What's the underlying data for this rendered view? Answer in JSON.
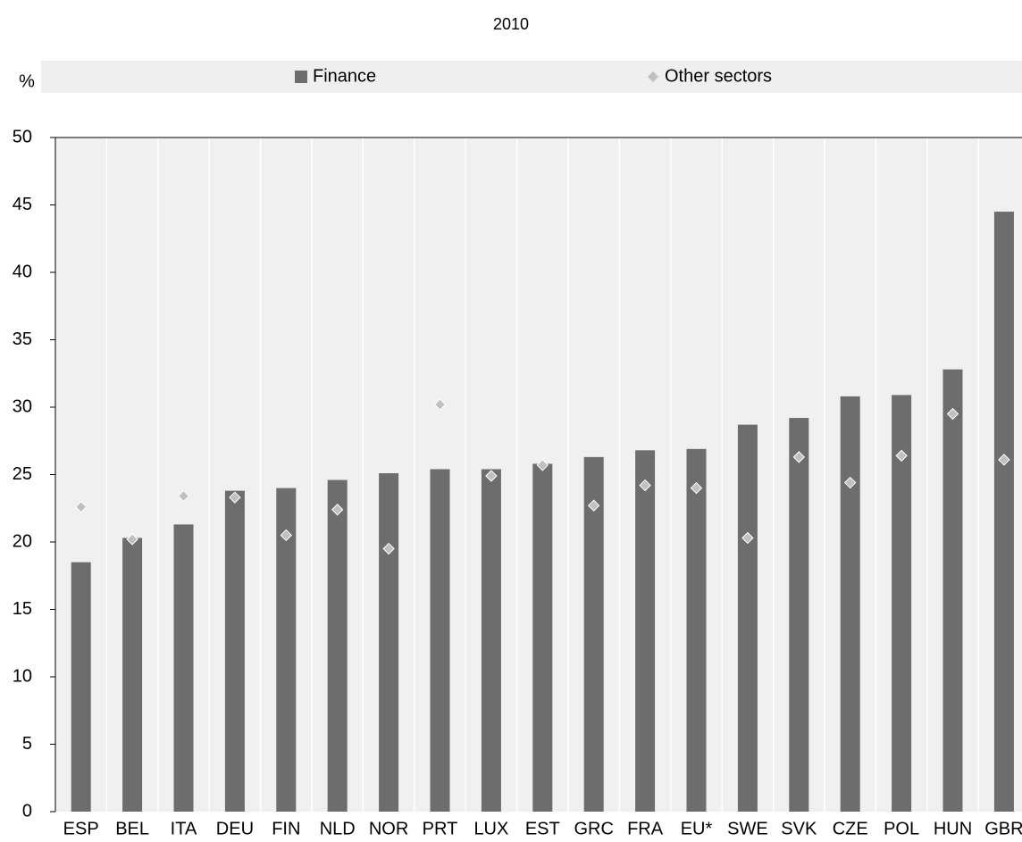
{
  "chart_data": {
    "type": "bar",
    "title": "2010",
    "y_label": "%",
    "categories": [
      "ESP",
      "BEL",
      "ITA",
      "DEU",
      "FIN",
      "NLD",
      "NOR",
      "PRT",
      "LUX",
      "EST",
      "GRC",
      "FRA",
      "EU*",
      "SWE",
      "SVK",
      "CZE",
      "POL",
      "HUN",
      "GBR"
    ],
    "series": [
      {
        "name": "Finance",
        "color": "#6d6d6d",
        "mark": "bar",
        "values": [
          18.5,
          20.3,
          21.3,
          23.8,
          24.0,
          24.6,
          25.1,
          25.4,
          25.4,
          25.8,
          26.3,
          26.8,
          26.9,
          28.7,
          29.2,
          30.8,
          30.9,
          32.8,
          44.5
        ]
      },
      {
        "name": "Other sectors",
        "color": "#c0c0c0",
        "mark": "diamond",
        "values": [
          22.6,
          20.2,
          23.4,
          23.3,
          20.5,
          22.4,
          19.5,
          30.2,
          24.9,
          25.7,
          22.7,
          24.2,
          24.0,
          20.3,
          26.3,
          24.4,
          26.4,
          29.5,
          26.1
        ]
      }
    ],
    "ylim": [
      0,
      50
    ],
    "yticks": [
      0,
      5,
      10,
      15,
      20,
      25,
      30,
      35,
      40,
      45,
      50
    ],
    "legend": "top"
  }
}
